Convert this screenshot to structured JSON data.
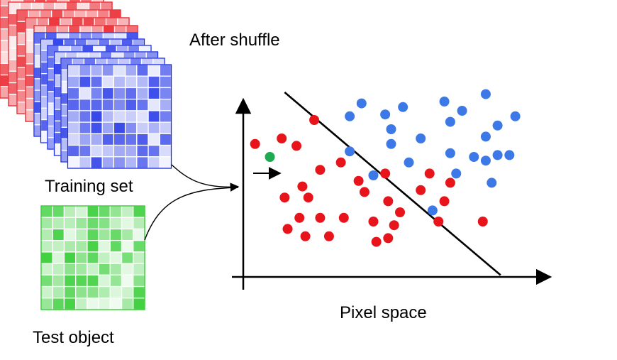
{
  "labels": {
    "after_shuffle": "After shuffle",
    "training_set": "Training set",
    "test_object": "Test object",
    "pixel_space": "Pixel space"
  },
  "colors": {
    "red_class": "#e8141c",
    "blue_class": "#3c78e6",
    "test_point": "#1daa50",
    "red_stack": "#e8141c",
    "blue_stack": "#1428e6",
    "green_tile": "#1ec81e"
  },
  "stacks": {
    "red_layers": 5,
    "blue_layers": 6,
    "grid_cells": 9
  },
  "chart_data": {
    "type": "scatter",
    "title": "",
    "xlabel": "",
    "ylabel": "",
    "xlim": [
      0,
      10
    ],
    "ylim": [
      0,
      10
    ],
    "decision_boundary": {
      "from": [
        1.4,
        10.0
      ],
      "to": [
        8.7,
        0.1
      ]
    },
    "series": [
      {
        "class": "red",
        "points": [
          [
            0.4,
            7.2
          ],
          [
            1.3,
            7.5
          ],
          [
            1.8,
            7.1
          ],
          [
            2.4,
            8.5
          ],
          [
            3.3,
            6.2
          ],
          [
            2.6,
            5.8
          ],
          [
            3.9,
            5.2
          ],
          [
            4.8,
            5.6
          ],
          [
            1.4,
            4.3
          ],
          [
            2.0,
            4.9
          ],
          [
            2.2,
            4.3
          ],
          [
            4.1,
            4.6
          ],
          [
            4.9,
            4.1
          ],
          [
            6.0,
            4.7
          ],
          [
            6.3,
            5.6
          ],
          [
            7.0,
            5.1
          ],
          [
            5.3,
            3.5
          ],
          [
            1.9,
            3.2
          ],
          [
            2.6,
            3.2
          ],
          [
            3.4,
            3.2
          ],
          [
            4.4,
            3.0
          ],
          [
            5.1,
            2.8
          ],
          [
            6.6,
            3.0
          ],
          [
            6.8,
            4.1
          ],
          [
            1.5,
            2.6
          ],
          [
            2.1,
            2.2
          ],
          [
            2.9,
            2.2
          ],
          [
            4.5,
            1.9
          ],
          [
            8.1,
            3.0
          ],
          [
            4.9,
            2.1
          ]
        ]
      },
      {
        "class": "blue",
        "points": [
          [
            3.6,
            6.8
          ],
          [
            4.4,
            5.5
          ],
          [
            5.0,
            7.2
          ],
          [
            5.6,
            6.2
          ],
          [
            5.0,
            8.0
          ],
          [
            5.4,
            9.2
          ],
          [
            6.8,
            9.5
          ],
          [
            7.4,
            9.0
          ],
          [
            7.0,
            8.4
          ],
          [
            4.8,
            8.8
          ],
          [
            6.0,
            7.5
          ],
          [
            7.2,
            5.6
          ],
          [
            7.0,
            6.7
          ],
          [
            7.8,
            6.5
          ],
          [
            8.2,
            6.3
          ],
          [
            8.6,
            6.6
          ],
          [
            9.0,
            6.6
          ],
          [
            8.4,
            5.1
          ],
          [
            8.2,
            7.6
          ],
          [
            8.6,
            8.2
          ],
          [
            9.2,
            8.7
          ],
          [
            6.4,
            3.6
          ],
          [
            4.0,
            9.4
          ],
          [
            3.6,
            8.7
          ],
          [
            8.2,
            9.9
          ]
        ]
      }
    ],
    "test_point": [
      0.9,
      6.5
    ]
  }
}
